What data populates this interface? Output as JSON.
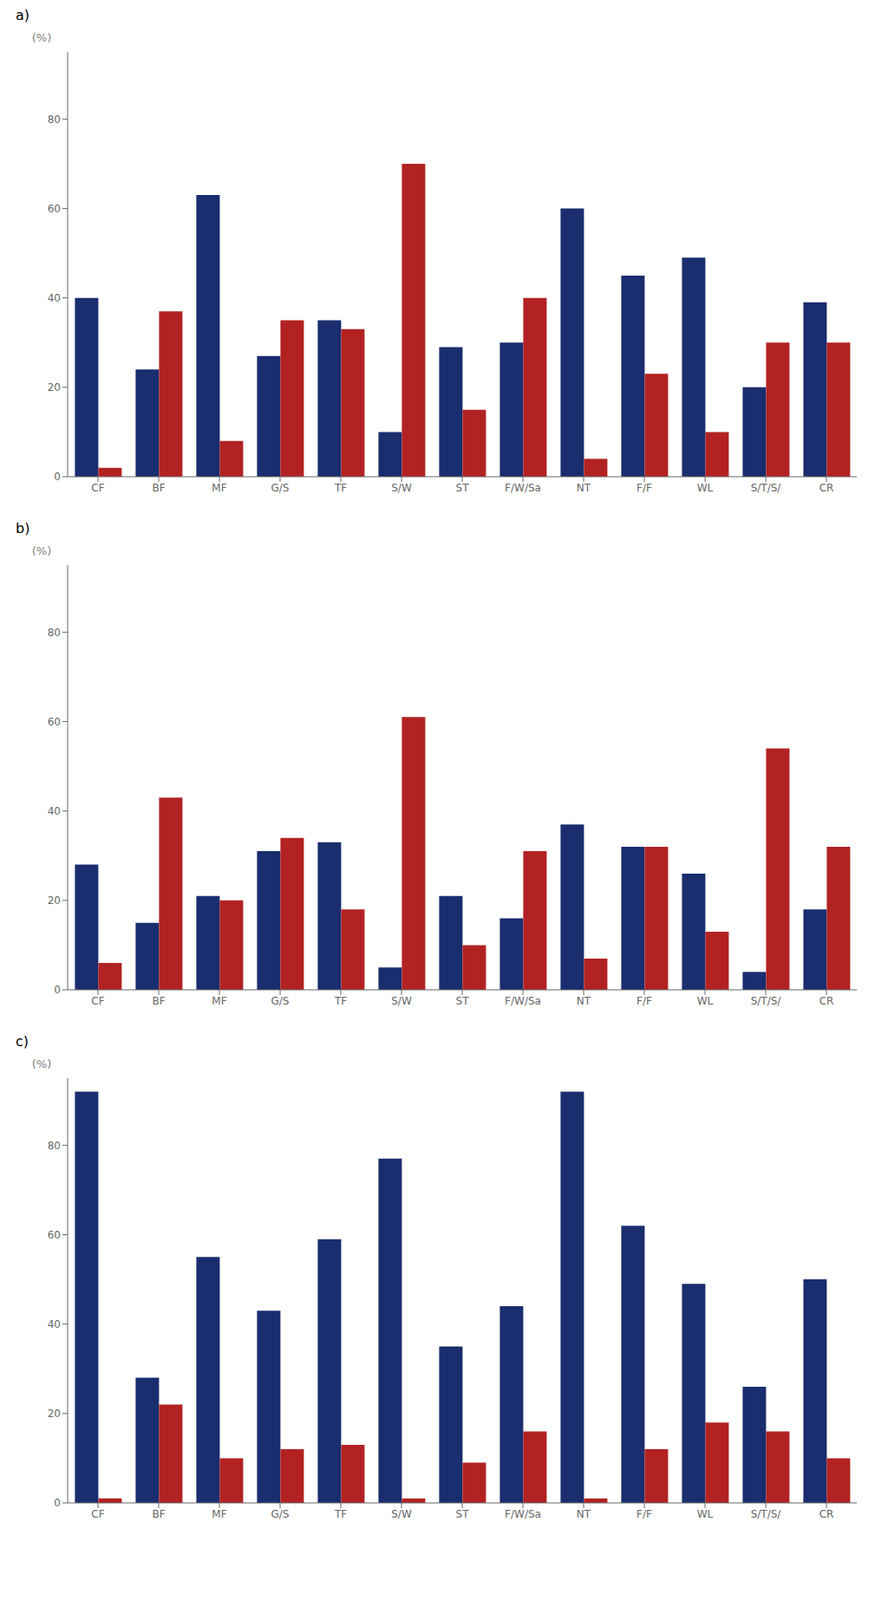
{
  "chart_data": [
    {
      "type": "bar",
      "title": "a)",
      "ylabel": "(%)",
      "categories": [
        "CF",
        "BF",
        "MF",
        "G/S",
        "TF",
        "S/W",
        "ST",
        "F/W/Sa",
        "NT",
        "F/F",
        "WL",
        "S/T/S/",
        "CR"
      ],
      "series": [
        {
          "color": "#1a2d6e",
          "values": [
            40,
            24,
            63,
            27,
            35,
            10,
            29,
            30,
            60,
            45,
            49,
            20,
            39
          ]
        },
        {
          "color": "#b22222",
          "values": [
            2,
            37,
            8,
            35,
            33,
            70,
            15,
            40,
            4,
            23,
            10,
            30,
            30
          ]
        }
      ],
      "ylim": [
        0,
        95
      ],
      "yticks": [
        0,
        20,
        40,
        60,
        80
      ],
      "grid": false
    },
    {
      "type": "bar",
      "title": "b)",
      "ylabel": "(%)",
      "categories": [
        "CF",
        "BF",
        "MF",
        "G/S",
        "TF",
        "S/W",
        "ST",
        "F/W/Sa",
        "NT",
        "F/F",
        "WL",
        "S/T/S/",
        "CR"
      ],
      "series": [
        {
          "color": "#1a2d6e",
          "values": [
            28,
            15,
            21,
            31,
            33,
            5,
            21,
            16,
            37,
            32,
            26,
            4,
            18
          ]
        },
        {
          "color": "#b22222",
          "values": [
            6,
            43,
            20,
            34,
            18,
            61,
            10,
            31,
            7,
            32,
            13,
            54,
            32
          ]
        }
      ],
      "ylim": [
        0,
        95
      ],
      "yticks": [
        0,
        20,
        40,
        60,
        80
      ],
      "grid": false
    },
    {
      "type": "bar",
      "title": "c)",
      "ylabel": "(%)",
      "categories": [
        "CF",
        "BF",
        "MF",
        "G/S",
        "TF",
        "S/W",
        "ST",
        "F/W/Sa",
        "NT",
        "F/F",
        "WL",
        "S/T/S/",
        "CR"
      ],
      "series": [
        {
          "color": "#1a2d6e",
          "values": [
            92,
            28,
            55,
            43,
            59,
            77,
            35,
            44,
            92,
            62,
            49,
            26,
            50
          ]
        },
        {
          "color": "#b22222",
          "values": [
            1,
            22,
            10,
            12,
            13,
            1,
            9,
            16,
            1,
            12,
            18,
            16,
            10
          ]
        }
      ],
      "ylim": [
        0,
        95
      ],
      "yticks": [
        0,
        20,
        40,
        60,
        80
      ],
      "grid": false
    }
  ]
}
